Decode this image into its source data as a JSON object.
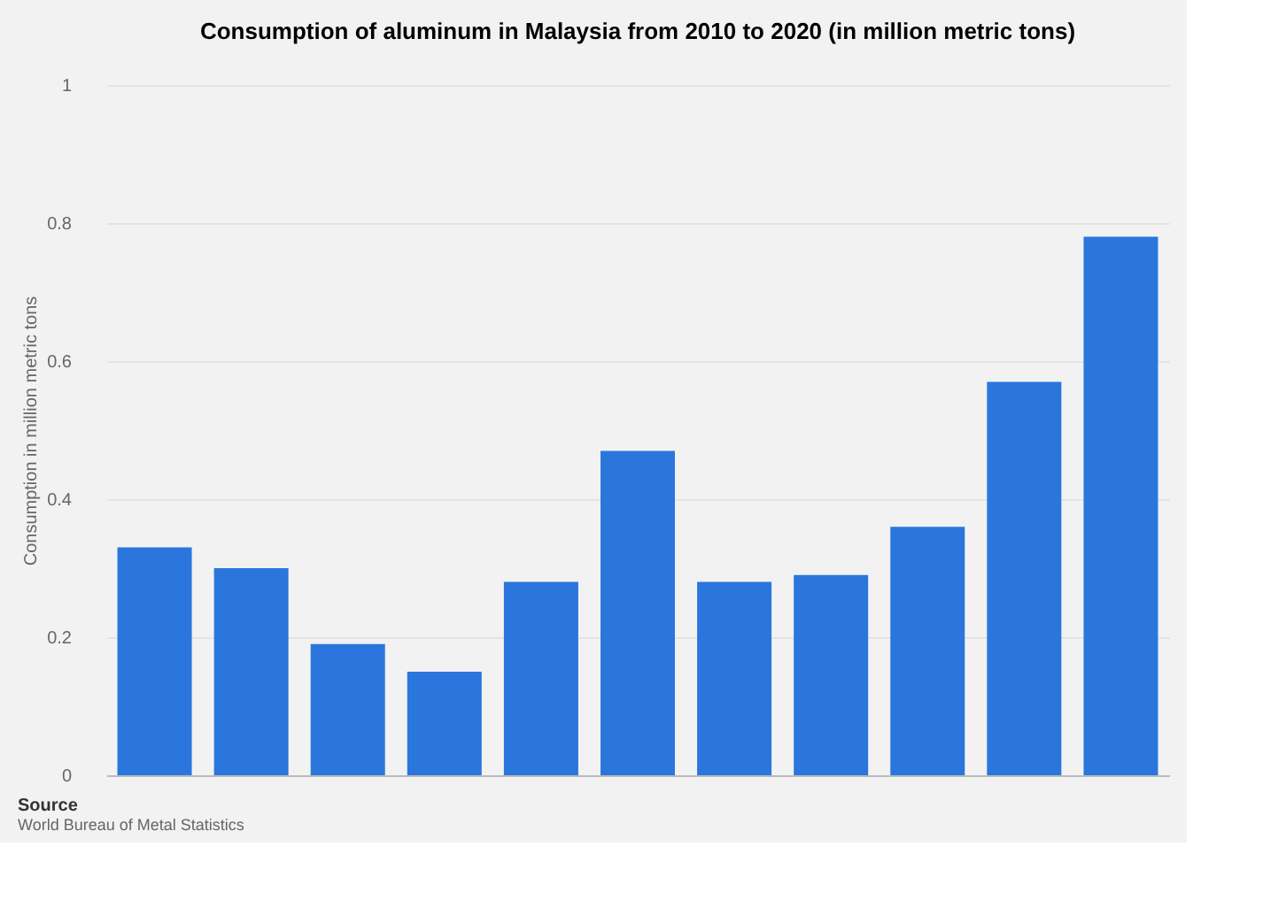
{
  "chart_data": {
    "type": "bar",
    "title": "Consumption of aluminum in Malaysia from 2010 to 2020 (in million metric tons)",
    "ylabel": "Consumption in million metric tons",
    "categories": [
      null,
      null,
      null,
      null,
      null,
      null,
      null,
      null,
      null,
      null,
      null
    ],
    "values": [
      0.33,
      0.3,
      0.19,
      0.15,
      0.28,
      0.47,
      0.28,
      0.29,
      0.36,
      0.57,
      0.78
    ],
    "color": "#2a76dd",
    "ylim": [
      0,
      1
    ],
    "yticks": [
      0,
      0.2,
      0.4,
      0.6,
      0.8,
      1
    ],
    "grid": "y",
    "tick_labels": "y",
    "annotations": [
      "Source",
      "World Bureau of Metal Statistics"
    ]
  }
}
